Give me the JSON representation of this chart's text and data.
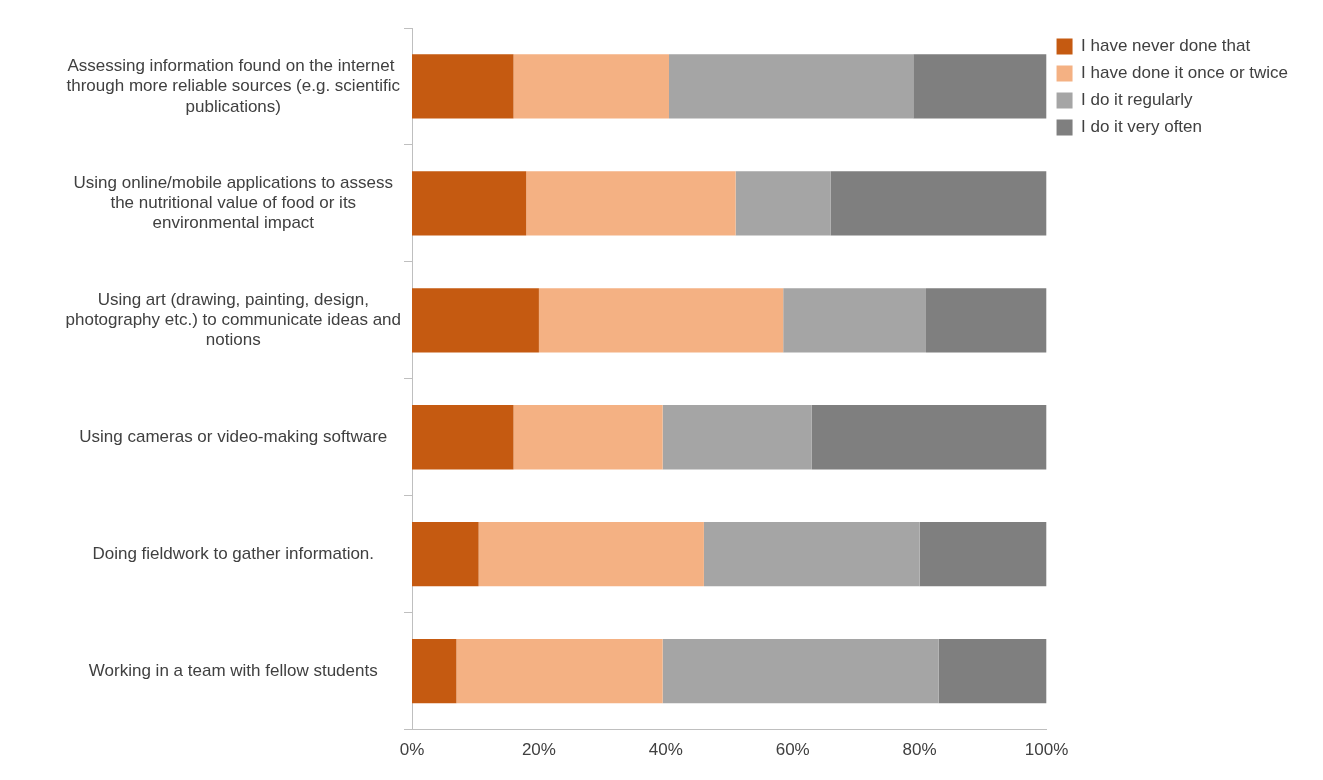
{
  "chart_data": {
    "type": "bar",
    "orientation": "horizontal",
    "stacked": true,
    "categories": [
      "Assessing information found on the internet  through more reliable sources (e.g. scientific publications)",
      "Using online/mobile applications to assess the nutritional value of food or its environmental impact",
      "Using art (drawing, painting, design, photography etc.) to communicate ideas and notions",
      "Using cameras or video-making software",
      "Doing fieldwork to gather information.",
      "Working in a team with fellow students"
    ],
    "series": [
      {
        "name": "I have never done that",
        "color": "#c55a11",
        "values": [
          16,
          18,
          20,
          16,
          10.5,
          7
        ]
      },
      {
        "name": "I have done it once or twice",
        "color": "#f4b183",
        "values": [
          24.5,
          33,
          38.5,
          23.5,
          35.5,
          32.5
        ]
      },
      {
        "name": "I do it regularly",
        "color": "#a5a5a5",
        "values": [
          38.5,
          15,
          22.5,
          23.5,
          34,
          43.5
        ]
      },
      {
        "name": "I do it very often",
        "color": "#7f7f7f",
        "values": [
          21,
          34,
          19,
          37,
          20,
          17
        ]
      }
    ],
    "xlim": [
      0,
      100
    ],
    "xticks": [
      {
        "value": 0,
        "label": "0%"
      },
      {
        "value": 20,
        "label": "20%"
      },
      {
        "value": 40,
        "label": "40%"
      },
      {
        "value": 60,
        "label": "60%"
      },
      {
        "value": 80,
        "label": "80%"
      },
      {
        "value": 100,
        "label": "100%"
      }
    ],
    "grid": false,
    "legend": "top right"
  }
}
